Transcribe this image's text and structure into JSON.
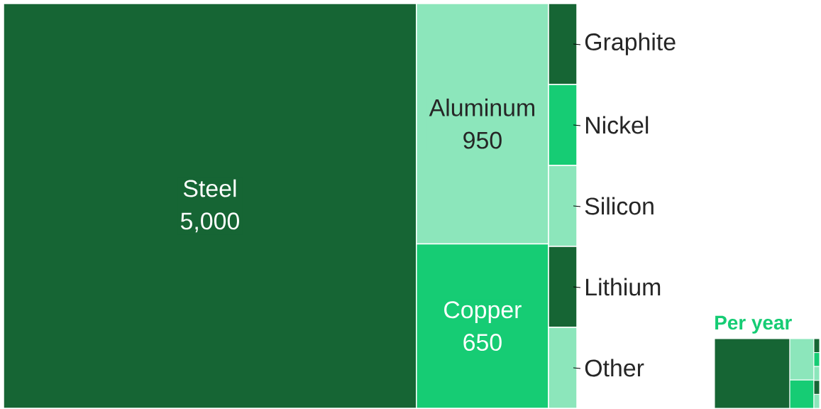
{
  "chart_data": {
    "type": "other",
    "categories": [
      "Steel",
      "Aluminum",
      "Copper",
      "Graphite",
      "Nickel",
      "Silicon",
      "Lithium",
      "Other"
    ],
    "values": [
      5000,
      950,
      650,
      null,
      null,
      null,
      null,
      null
    ],
    "value_labels": [
      "5,000",
      "950",
      "650",
      null,
      null,
      null,
      null,
      null
    ],
    "colors": [
      "#166534",
      "#8ce6bb",
      "#16cc74",
      "#166534",
      "#16cc74",
      "#8ce6bb",
      "#166534",
      "#8ce6bb"
    ],
    "annotations": [
      "Per year"
    ]
  }
}
